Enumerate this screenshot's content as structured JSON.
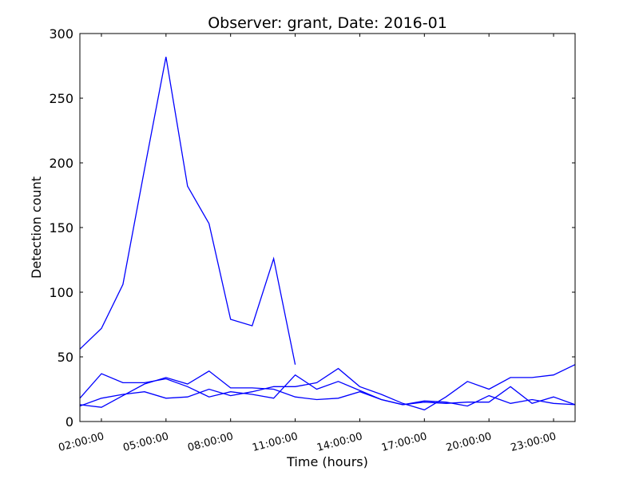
{
  "chart_data": {
    "type": "line",
    "title": "Observer: grant, Date: 2016-01",
    "xlabel": "Time (hours)",
    "ylabel": "Detection count",
    "x_unit": "hours",
    "xlim": [
      1,
      24
    ],
    "ylim": [
      0,
      300
    ],
    "x_ticks": [
      {
        "value": 2,
        "label": "02:00:00"
      },
      {
        "value": 5,
        "label": "05:00:00"
      },
      {
        "value": 8,
        "label": "08:00:00"
      },
      {
        "value": 11,
        "label": "11:00:00"
      },
      {
        "value": 14,
        "label": "14:00:00"
      },
      {
        "value": 17,
        "label": "17:00:00"
      },
      {
        "value": 20,
        "label": "20:00:00"
      },
      {
        "value": 23,
        "label": "23:00:00"
      }
    ],
    "y_ticks": [
      0,
      50,
      100,
      150,
      200,
      250,
      300
    ],
    "grid": false,
    "line_color": "#0000ff",
    "series": [
      {
        "x": [
          1,
          2,
          3,
          4,
          5,
          6,
          7,
          8,
          9,
          10,
          11
        ],
        "values": [
          56,
          72,
          106,
          195,
          282,
          182,
          153,
          79,
          74,
          126,
          44
        ]
      },
      {
        "x": [
          1,
          2,
          3,
          4,
          5,
          6,
          7,
          8,
          9,
          10,
          11,
          12,
          13,
          14,
          15,
          16,
          17,
          18,
          19,
          20,
          21,
          22,
          23,
          24
        ],
        "values": [
          13,
          11,
          20,
          29,
          34,
          29,
          39,
          26,
          26,
          25,
          19,
          17,
          18,
          23,
          17,
          13,
          16,
          15,
          12,
          20,
          14,
          17,
          14,
          13
        ]
      },
      {
        "x": [
          1,
          2,
          3,
          4,
          5,
          6,
          7,
          8,
          9,
          10,
          11,
          12,
          13,
          14,
          15,
          16,
          17,
          18,
          19,
          20,
          21,
          22,
          23,
          24
        ],
        "values": [
          18,
          37,
          30,
          30,
          33,
          27,
          19,
          23,
          21,
          18,
          36,
          25,
          31,
          24,
          17,
          13,
          15,
          14,
          15,
          15,
          27,
          14,
          19,
          13
        ]
      },
      {
        "x": [
          1,
          2,
          3,
          4,
          5,
          6,
          7,
          8,
          9,
          10,
          11,
          12,
          13,
          14,
          15,
          16,
          17,
          18,
          19,
          20,
          21,
          22,
          23,
          24
        ],
        "values": [
          12,
          18,
          21,
          23,
          18,
          19,
          25,
          20,
          23,
          27,
          27,
          30,
          41,
          27,
          21,
          14,
          9,
          19,
          31,
          25,
          34,
          34,
          36,
          44
        ]
      }
    ]
  }
}
